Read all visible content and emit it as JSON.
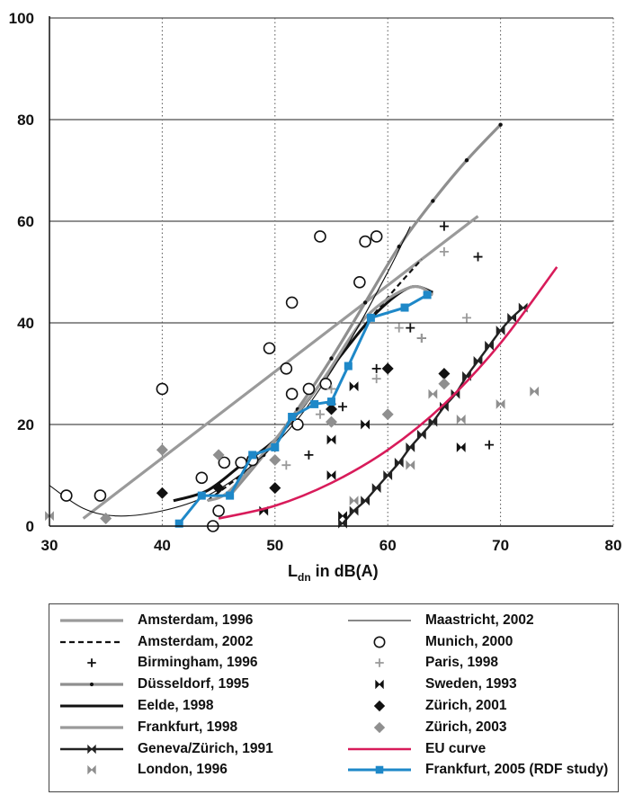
{
  "chart_data": {
    "type": "scatter",
    "xlabel_main": "L",
    "xlabel_sub": "dn",
    "xlabel_rest": " in dB(A)",
    "xlim": [
      30,
      80
    ],
    "ylim": [
      0,
      100
    ],
    "xticks": [
      "30",
      "40",
      "50",
      "60",
      "70",
      "80"
    ],
    "yticks": [
      "0",
      "20",
      "40",
      "60",
      "80",
      "100"
    ],
    "grid": "horizontal solid, vertical dotted",
    "legend_position": "bottom",
    "series": [
      {
        "name": "Amsterdam, 1996",
        "color": "#9a9a9a",
        "marker": "none",
        "points": [
          [
            33,
            1.5
          ],
          [
            68,
            61
          ]
        ]
      },
      {
        "name": "Amsterdam, 2002",
        "color": "#111111",
        "marker": "none",
        "dash": true,
        "points": [
          [
            44,
            5
          ],
          [
            48,
            12
          ],
          [
            52,
            22
          ],
          [
            56,
            34
          ],
          [
            60,
            45
          ],
          [
            63,
            52.5
          ]
        ]
      },
      {
        "name": "Birmingham, 1996",
        "color": "#111111",
        "marker": "plus",
        "points": [
          [
            53,
            14
          ],
          [
            55,
            24
          ],
          [
            56,
            23.5
          ],
          [
            59,
            31
          ],
          [
            62,
            39
          ],
          [
            63,
            37
          ],
          [
            65,
            59
          ],
          [
            68,
            53
          ],
          [
            69,
            16
          ]
        ]
      },
      {
        "name": "Düsseldorf, 1995",
        "color": "#8f8f8f",
        "marker": "dot",
        "points": [
          [
            46,
            6
          ],
          [
            49,
            14
          ],
          [
            52,
            23
          ],
          [
            55,
            33
          ],
          [
            58,
            44
          ],
          [
            61,
            55
          ],
          [
            64,
            64
          ],
          [
            67,
            72
          ],
          [
            70,
            79
          ]
        ]
      },
      {
        "name": "Eelde, 1998",
        "color": "#111111",
        "marker": "none",
        "points": [
          [
            41,
            5
          ],
          [
            44,
            7
          ],
          [
            47,
            12
          ],
          [
            50,
            17
          ],
          [
            53,
            25
          ],
          [
            56,
            34
          ],
          [
            59,
            42
          ],
          [
            62,
            47
          ],
          [
            64,
            46
          ]
        ]
      },
      {
        "name": "Frankfurt, 1998",
        "color": "#9a9a9a",
        "marker": "none",
        "points": [
          [
            44,
            5
          ],
          [
            46,
            7
          ],
          [
            50,
            17
          ],
          [
            54,
            28
          ],
          [
            58,
            41
          ],
          [
            62,
            47
          ],
          [
            64,
            45.5
          ]
        ]
      },
      {
        "name": "Geneva/Zürich, 1991",
        "color": "#222222",
        "marker": "bowtie",
        "points": [
          [
            56,
            0.5
          ],
          [
            57,
            3
          ],
          [
            58,
            5
          ],
          [
            59,
            7.5
          ],
          [
            60,
            10
          ],
          [
            61,
            12.5
          ],
          [
            62,
            15.5
          ],
          [
            63,
            18
          ],
          [
            64,
            20.5
          ],
          [
            65,
            23.5
          ],
          [
            66,
            26
          ],
          [
            67,
            29.5
          ],
          [
            68,
            32.5
          ],
          [
            69,
            35.5
          ],
          [
            70,
            38.5
          ],
          [
            71,
            41
          ],
          [
            72,
            43
          ]
        ]
      },
      {
        "name": "London, 1996",
        "color": "#8f8f8f",
        "marker": "xgray",
        "points": [
          [
            30,
            2
          ],
          [
            57,
            5
          ],
          [
            62,
            12
          ],
          [
            64,
            26
          ],
          [
            66.5,
            21
          ],
          [
            70,
            24
          ],
          [
            73,
            26.5
          ]
        ]
      },
      {
        "name": "Maastricht, 2002",
        "color": "#111111",
        "marker": "none",
        "points": [
          [
            30,
            8
          ],
          [
            33,
            3.5
          ],
          [
            36,
            2
          ],
          [
            40,
            3
          ],
          [
            44,
            6
          ],
          [
            48,
            12
          ],
          [
            52,
            21
          ],
          [
            56,
            34
          ],
          [
            60,
            50
          ],
          [
            62,
            59
          ]
        ]
      },
      {
        "name": "Munich, 2000",
        "color": "#111111",
        "marker": "circle",
        "points": [
          [
            31.5,
            6
          ],
          [
            34.5,
            6
          ],
          [
            40,
            27
          ],
          [
            43.5,
            9.5
          ],
          [
            44.5,
            0
          ],
          [
            45,
            3
          ],
          [
            45.5,
            12.5
          ],
          [
            47,
            12.5
          ],
          [
            48,
            13
          ],
          [
            49.5,
            35
          ],
          [
            51,
            31
          ],
          [
            51.5,
            44
          ],
          [
            51.5,
            26
          ],
          [
            52,
            20
          ],
          [
            53,
            27
          ],
          [
            54,
            57
          ],
          [
            54.5,
            28
          ],
          [
            57.5,
            48
          ],
          [
            58,
            56
          ],
          [
            59,
            57
          ]
        ]
      },
      {
        "name": "Paris, 1998",
        "color": "#9a9a9a",
        "marker": "plus",
        "points": [
          [
            51,
            12
          ],
          [
            54,
            22
          ],
          [
            55,
            27
          ],
          [
            59,
            29
          ],
          [
            61,
            39
          ],
          [
            63,
            37
          ],
          [
            65,
            54
          ],
          [
            67,
            41
          ]
        ]
      },
      {
        "name": "Sweden, 1993",
        "color": "#111111",
        "marker": "bowtie",
        "points": [
          [
            49,
            3
          ],
          [
            55,
            17
          ],
          [
            55,
            10
          ],
          [
            56,
            2
          ],
          [
            57,
            27.5
          ],
          [
            58,
            20
          ],
          [
            66.5,
            15.5
          ]
        ]
      },
      {
        "name": "Zürich, 2001",
        "color": "#111111",
        "marker": "diamond",
        "points": [
          [
            40,
            6.5
          ],
          [
            45,
            7.5
          ],
          [
            50,
            7.5
          ],
          [
            55,
            23
          ],
          [
            60,
            31
          ],
          [
            65,
            30
          ]
        ]
      },
      {
        "name": "Zürich, 2003",
        "color": "#8f8f8f",
        "marker": "diamondgray",
        "points": [
          [
            35,
            1.5
          ],
          [
            40,
            15
          ],
          [
            45,
            14
          ],
          [
            50,
            13
          ],
          [
            55,
            20.5
          ],
          [
            60,
            22
          ],
          [
            65,
            28
          ]
        ]
      },
      {
        "name": "EU curve",
        "color": "#d81b5a",
        "marker": "none",
        "points": [
          [
            45,
            1.5
          ],
          [
            50,
            4
          ],
          [
            55,
            8.5
          ],
          [
            60,
            15
          ],
          [
            65,
            24
          ],
          [
            70,
            36
          ],
          [
            75,
            51
          ]
        ]
      },
      {
        "name": "Frankfurt, 2005 (RDF study)",
        "color": "#1e88c8",
        "marker": "square",
        "points": [
          [
            41.5,
            0.5
          ],
          [
            43.5,
            6
          ],
          [
            46,
            6
          ],
          [
            48,
            14
          ],
          [
            50,
            15.5
          ],
          [
            51.5,
            21.5
          ],
          [
            53.5,
            24
          ],
          [
            55,
            24.5
          ],
          [
            56.5,
            31.5
          ],
          [
            58.5,
            41
          ],
          [
            61.5,
            43
          ],
          [
            63.5,
            45.5
          ]
        ]
      }
    ],
    "curve_series": [
      "Amsterdam, 1996",
      "Amsterdam, 2002",
      "Düsseldorf, 1995",
      "Eelde, 1998",
      "Frankfurt, 1998",
      "Geneva/Zürich, 1991",
      "Maastricht, 2002",
      "EU curve",
      "Frankfurt, 2005 (RDF study)"
    ]
  },
  "legend_col1": [
    0,
    1,
    2,
    3,
    4,
    5,
    6,
    7
  ],
  "legend_col2": [
    8,
    9,
    10,
    11,
    12,
    13,
    14,
    15
  ]
}
